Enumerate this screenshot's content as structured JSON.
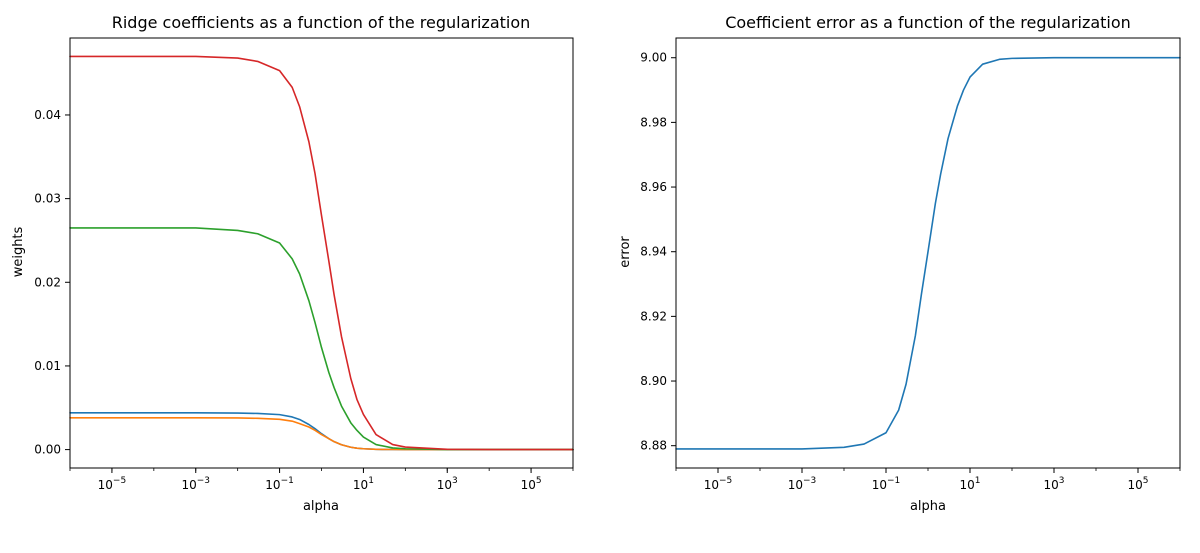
{
  "chart_data": [
    {
      "type": "line",
      "title": "Ridge coefficients as a function of the regularization",
      "xlabel": "alpha",
      "ylabel": "weights",
      "xscale": "log",
      "xlim": [
        1e-06,
        1000000.0
      ],
      "ylim": [
        -0.0022,
        0.0492
      ],
      "xticks": [
        {
          "base": "10",
          "exp": "−5",
          "value": 1e-05
        },
        {
          "base": "10",
          "exp": "−3",
          "value": 0.001
        },
        {
          "base": "10",
          "exp": "−1",
          "value": 0.1
        },
        {
          "base": "10",
          "exp": "1",
          "value": 10
        },
        {
          "base": "10",
          "exp": "3",
          "value": 1000
        },
        {
          "base": "10",
          "exp": "5",
          "value": 100000
        }
      ],
      "yticks": [
        "0.00",
        "0.01",
        "0.02",
        "0.03",
        "0.04"
      ],
      "ytick_values": [
        0.0,
        0.01,
        0.02,
        0.03,
        0.04
      ],
      "grid": false,
      "x": [
        1e-06,
        1e-05,
        0.0001,
        0.001,
        0.01,
        0.03,
        0.1,
        0.2,
        0.3,
        0.5,
        0.7,
        1,
        1.5,
        2,
        3,
        5,
        7,
        10,
        20,
        50,
        100,
        1000,
        10000,
        100000,
        1000000
      ],
      "series": [
        {
          "color": "#1f77b4",
          "values": [
            0.0044,
            0.0044,
            0.0044,
            0.0044,
            0.00437,
            0.00432,
            0.00418,
            0.0039,
            0.0036,
            0.003,
            0.0025,
            0.0019,
            0.0013,
            0.00095,
            0.00058,
            0.00028,
            0.00017,
            0.0001,
            3e-05,
            1e-05,
            0.0,
            0.0,
            0.0,
            0.0,
            0.0
          ]
        },
        {
          "color": "#ff7f0e",
          "values": [
            0.0038,
            0.0038,
            0.0038,
            0.0038,
            0.00378,
            0.00374,
            0.00362,
            0.0034,
            0.0031,
            0.0027,
            0.0023,
            0.0018,
            0.0013,
            0.00095,
            0.00058,
            0.00028,
            0.00017,
            0.0001,
            3e-05,
            1e-05,
            0.0,
            0.0,
            0.0,
            0.0,
            0.0
          ]
        },
        {
          "color": "#2ca02c",
          "values": [
            0.0265,
            0.0265,
            0.0265,
            0.0265,
            0.0262,
            0.0258,
            0.0247,
            0.0228,
            0.021,
            0.0178,
            0.0152,
            0.0122,
            0.0092,
            0.0074,
            0.0052,
            0.0032,
            0.0023,
            0.0015,
            0.0006,
            0.0002,
            0.0001,
            0.0,
            0.0,
            0.0,
            0.0
          ]
        },
        {
          "color": "#d62728",
          "values": [
            0.047,
            0.047,
            0.047,
            0.047,
            0.0468,
            0.0464,
            0.0453,
            0.0433,
            0.041,
            0.0368,
            0.033,
            0.028,
            0.0225,
            0.0185,
            0.0135,
            0.0085,
            0.006,
            0.0042,
            0.0018,
            0.0006,
            0.0003,
            3e-05,
            0.0,
            0.0,
            0.0
          ]
        }
      ]
    },
    {
      "type": "line",
      "title": "Coefficient error as a function of the regularization",
      "xlabel": "alpha",
      "ylabel": "error",
      "xscale": "log",
      "xlim": [
        1e-06,
        1000000.0
      ],
      "ylim": [
        8.8731,
        9.0061
      ],
      "xticks": [
        {
          "base": "10",
          "exp": "−5",
          "value": 1e-05
        },
        {
          "base": "10",
          "exp": "−3",
          "value": 0.001
        },
        {
          "base": "10",
          "exp": "−1",
          "value": 0.1
        },
        {
          "base": "10",
          "exp": "1",
          "value": 10
        },
        {
          "base": "10",
          "exp": "3",
          "value": 1000
        },
        {
          "base": "10",
          "exp": "5",
          "value": 100000
        }
      ],
      "yticks": [
        "8.88",
        "8.90",
        "8.92",
        "8.94",
        "8.96",
        "8.98",
        "9.00"
      ],
      "ytick_values": [
        8.88,
        8.9,
        8.92,
        8.94,
        8.96,
        8.98,
        9.0
      ],
      "grid": false,
      "x": [
        1e-06,
        1e-05,
        0.0001,
        0.001,
        0.01,
        0.03,
        0.1,
        0.2,
        0.3,
        0.5,
        0.7,
        1,
        1.5,
        2,
        3,
        5,
        7,
        10,
        20,
        50,
        100,
        1000,
        10000,
        100000,
        1000000
      ],
      "series": [
        {
          "color": "#1f77b4",
          "values": [
            8.879,
            8.879,
            8.879,
            8.879,
            8.8795,
            8.8805,
            8.884,
            8.891,
            8.899,
            8.914,
            8.927,
            8.94,
            8.955,
            8.964,
            8.975,
            8.985,
            8.99,
            8.994,
            8.998,
            8.9995,
            8.9998,
            9.0,
            9.0,
            9.0,
            9.0
          ]
        }
      ]
    }
  ]
}
